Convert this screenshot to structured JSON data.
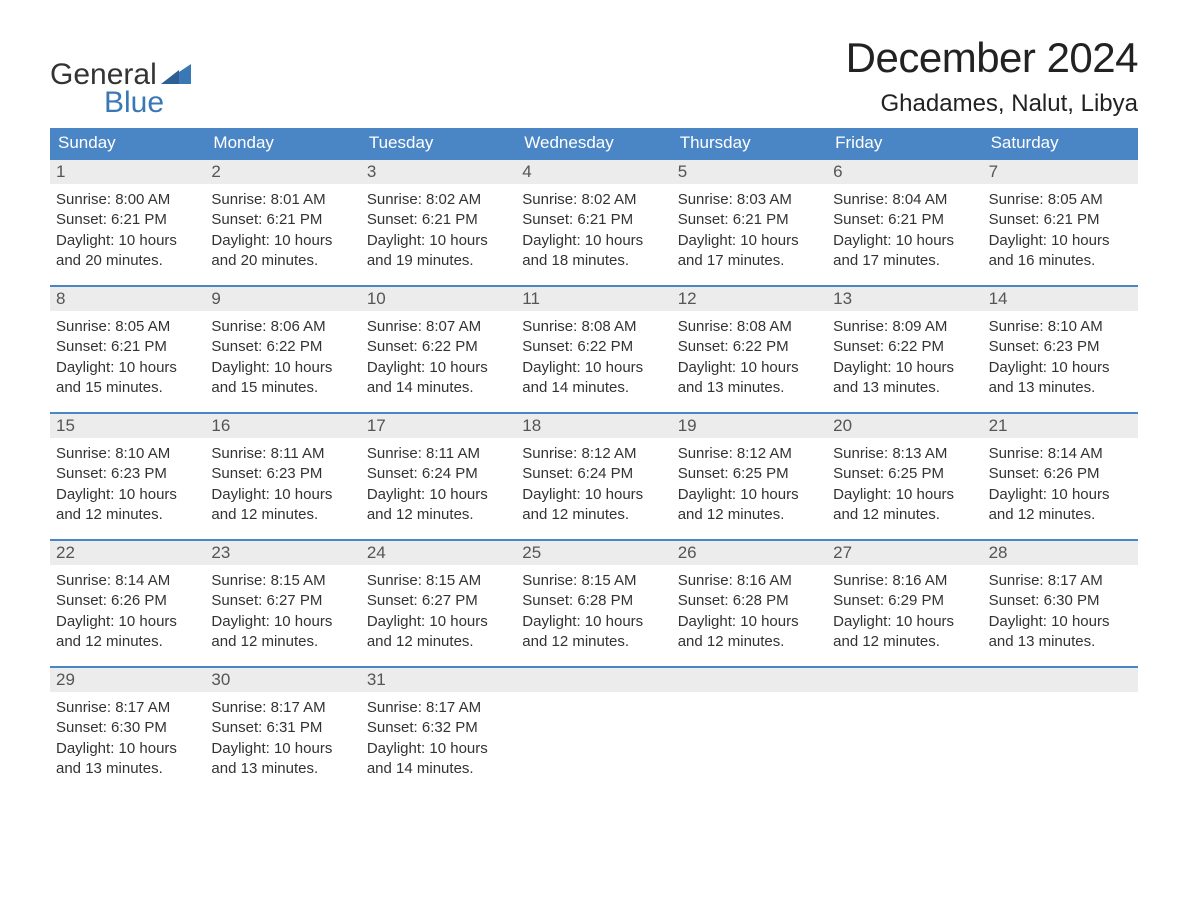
{
  "brand": {
    "line1": "General",
    "line2": "Blue"
  },
  "colors": {
    "accent": "#4a86c5",
    "header_bg": "#4a86c5",
    "header_text": "#ffffff",
    "daynum_bg": "#ececec",
    "daynum_border": "#4a86c5",
    "body_text": "#333333",
    "logo_blue": "#3a78b5"
  },
  "title": "December 2024",
  "location": "Ghadames, Nalut, Libya",
  "weekdays": [
    "Sunday",
    "Monday",
    "Tuesday",
    "Wednesday",
    "Thursday",
    "Friday",
    "Saturday"
  ],
  "labels": {
    "sunrise_prefix": "Sunrise: ",
    "sunset_prefix": "Sunset: ",
    "daylight_prefix": "Daylight: "
  },
  "weeks": [
    {
      "days": [
        {
          "num": "1",
          "sunrise": "8:00 AM",
          "sunset": "6:21 PM",
          "daylight": "10 hours and 20 minutes."
        },
        {
          "num": "2",
          "sunrise": "8:01 AM",
          "sunset": "6:21 PM",
          "daylight": "10 hours and 20 minutes."
        },
        {
          "num": "3",
          "sunrise": "8:02 AM",
          "sunset": "6:21 PM",
          "daylight": "10 hours and 19 minutes."
        },
        {
          "num": "4",
          "sunrise": "8:02 AM",
          "sunset": "6:21 PM",
          "daylight": "10 hours and 18 minutes."
        },
        {
          "num": "5",
          "sunrise": "8:03 AM",
          "sunset": "6:21 PM",
          "daylight": "10 hours and 17 minutes."
        },
        {
          "num": "6",
          "sunrise": "8:04 AM",
          "sunset": "6:21 PM",
          "daylight": "10 hours and 17 minutes."
        },
        {
          "num": "7",
          "sunrise": "8:05 AM",
          "sunset": "6:21 PM",
          "daylight": "10 hours and 16 minutes."
        }
      ]
    },
    {
      "days": [
        {
          "num": "8",
          "sunrise": "8:05 AM",
          "sunset": "6:21 PM",
          "daylight": "10 hours and 15 minutes."
        },
        {
          "num": "9",
          "sunrise": "8:06 AM",
          "sunset": "6:22 PM",
          "daylight": "10 hours and 15 minutes."
        },
        {
          "num": "10",
          "sunrise": "8:07 AM",
          "sunset": "6:22 PM",
          "daylight": "10 hours and 14 minutes."
        },
        {
          "num": "11",
          "sunrise": "8:08 AM",
          "sunset": "6:22 PM",
          "daylight": "10 hours and 14 minutes."
        },
        {
          "num": "12",
          "sunrise": "8:08 AM",
          "sunset": "6:22 PM",
          "daylight": "10 hours and 13 minutes."
        },
        {
          "num": "13",
          "sunrise": "8:09 AM",
          "sunset": "6:22 PM",
          "daylight": "10 hours and 13 minutes."
        },
        {
          "num": "14",
          "sunrise": "8:10 AM",
          "sunset": "6:23 PM",
          "daylight": "10 hours and 13 minutes."
        }
      ]
    },
    {
      "days": [
        {
          "num": "15",
          "sunrise": "8:10 AM",
          "sunset": "6:23 PM",
          "daylight": "10 hours and 12 minutes."
        },
        {
          "num": "16",
          "sunrise": "8:11 AM",
          "sunset": "6:23 PM",
          "daylight": "10 hours and 12 minutes."
        },
        {
          "num": "17",
          "sunrise": "8:11 AM",
          "sunset": "6:24 PM",
          "daylight": "10 hours and 12 minutes."
        },
        {
          "num": "18",
          "sunrise": "8:12 AM",
          "sunset": "6:24 PM",
          "daylight": "10 hours and 12 minutes."
        },
        {
          "num": "19",
          "sunrise": "8:12 AM",
          "sunset": "6:25 PM",
          "daylight": "10 hours and 12 minutes."
        },
        {
          "num": "20",
          "sunrise": "8:13 AM",
          "sunset": "6:25 PM",
          "daylight": "10 hours and 12 minutes."
        },
        {
          "num": "21",
          "sunrise": "8:14 AM",
          "sunset": "6:26 PM",
          "daylight": "10 hours and 12 minutes."
        }
      ]
    },
    {
      "days": [
        {
          "num": "22",
          "sunrise": "8:14 AM",
          "sunset": "6:26 PM",
          "daylight": "10 hours and 12 minutes."
        },
        {
          "num": "23",
          "sunrise": "8:15 AM",
          "sunset": "6:27 PM",
          "daylight": "10 hours and 12 minutes."
        },
        {
          "num": "24",
          "sunrise": "8:15 AM",
          "sunset": "6:27 PM",
          "daylight": "10 hours and 12 minutes."
        },
        {
          "num": "25",
          "sunrise": "8:15 AM",
          "sunset": "6:28 PM",
          "daylight": "10 hours and 12 minutes."
        },
        {
          "num": "26",
          "sunrise": "8:16 AM",
          "sunset": "6:28 PM",
          "daylight": "10 hours and 12 minutes."
        },
        {
          "num": "27",
          "sunrise": "8:16 AM",
          "sunset": "6:29 PM",
          "daylight": "10 hours and 12 minutes."
        },
        {
          "num": "28",
          "sunrise": "8:17 AM",
          "sunset": "6:30 PM",
          "daylight": "10 hours and 13 minutes."
        }
      ]
    },
    {
      "days": [
        {
          "num": "29",
          "sunrise": "8:17 AM",
          "sunset": "6:30 PM",
          "daylight": "10 hours and 13 minutes."
        },
        {
          "num": "30",
          "sunrise": "8:17 AM",
          "sunset": "6:31 PM",
          "daylight": "10 hours and 13 minutes."
        },
        {
          "num": "31",
          "sunrise": "8:17 AM",
          "sunset": "6:32 PM",
          "daylight": "10 hours and 14 minutes."
        },
        {
          "empty": true
        },
        {
          "empty": true
        },
        {
          "empty": true
        },
        {
          "empty": true
        }
      ]
    }
  ]
}
